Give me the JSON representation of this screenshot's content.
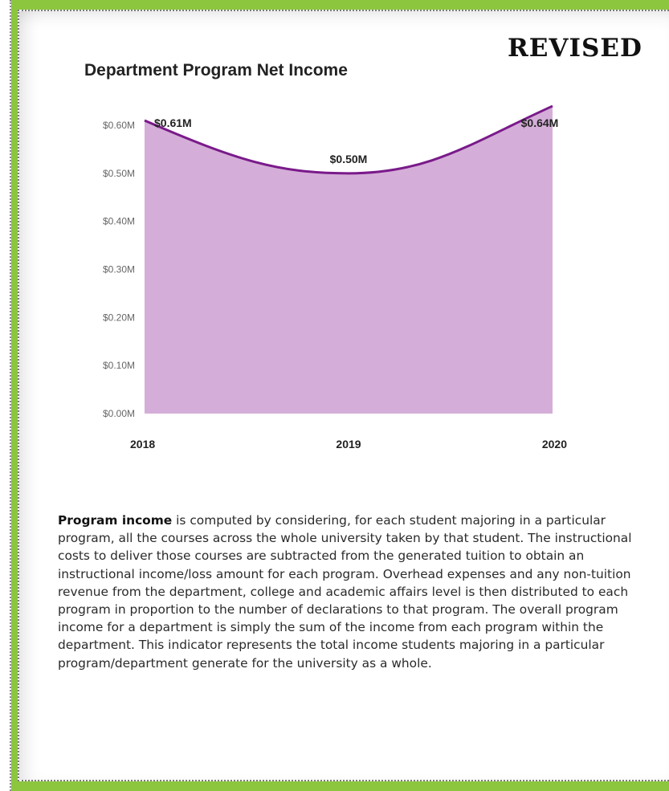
{
  "badge": "REVISED",
  "description": {
    "term": "Program income",
    "body": " is computed by considering, for each student majoring in a particular program, all the courses across the whole university taken by that student.  The instructional costs to deliver those courses are subtracted from the generated tuition to obtain an instructional income/loss amount for each program.  Overhead expenses and any non-tuition revenue from the department, college and academic affairs level is then distributed to each program in proportion to the number of declarations to that program.  The overall program income for a department is simply the sum of the income from each program within the department.  This indicator represents the total income students majoring in a particular program/department generate for the university as a whole."
  },
  "colors": {
    "area_fill": "#d4aed8",
    "line": "#7a1a8a",
    "frame": "#8cc63f"
  },
  "chart_data": {
    "type": "area",
    "title": "Department Program Net Income",
    "xlabel": "",
    "ylabel": "",
    "categories": [
      "2018",
      "2019",
      "2020"
    ],
    "values": [
      0.61,
      0.5,
      0.64
    ],
    "data_labels": [
      "$0.61M",
      "$0.50M",
      "$0.64M"
    ],
    "ylim": [
      0,
      0.6
    ],
    "yticks": [
      0.0,
      0.1,
      0.2,
      0.3,
      0.4,
      0.5,
      0.6
    ],
    "ytick_labels": [
      "$0.00M",
      "$0.10M",
      "$0.20M",
      "$0.30M",
      "$0.40M",
      "$0.50M",
      "$0.60M"
    ],
    "grid": false,
    "legend": "none"
  }
}
